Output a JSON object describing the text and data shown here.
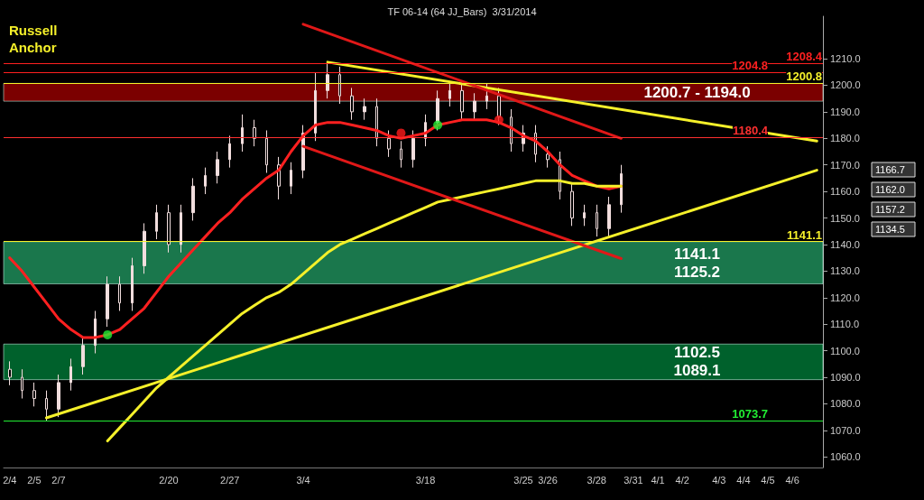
{
  "chart_data": {
    "type": "candlestick",
    "title": "TF 06-14 (64 JJ_Bars)  3/31/2014",
    "color": "#f2dede",
    "annotations": [
      "Russell\nAnchor",
      "1166.7",
      "1162.0",
      "1157.2",
      "1134.5"
    ],
    "categories": [
      "2/4",
      null,
      "2/5",
      null,
      "2/7",
      null,
      null,
      null,
      null,
      null,
      null,
      null,
      null,
      "2/20",
      null,
      null,
      null,
      null,
      "2/27",
      null,
      null,
      null,
      null,
      null,
      "3/4",
      null,
      null,
      null,
      null,
      null,
      null,
      null,
      null,
      null,
      "3/18",
      null,
      null,
      null,
      null,
      null,
      null,
      null,
      "3/25",
      null,
      "3/26",
      null,
      null,
      null,
      "3/28",
      null,
      null,
      "3/31",
      null,
      "4/1",
      null,
      "4/2",
      null,
      null,
      "4/3",
      null,
      "4/4",
      null,
      "4/5",
      null,
      "4/6",
      null,
      null
    ],
    "ohlc": [
      [
        1093,
        1096,
        1087,
        1090
      ],
      [
        1090,
        1093,
        1082,
        1085
      ],
      [
        1085,
        1088,
        1079,
        1082
      ],
      [
        1082,
        1085,
        1073.7,
        1078
      ],
      [
        1078,
        1091,
        1075,
        1088
      ],
      [
        1088,
        1097,
        1085,
        1094
      ],
      [
        1094,
        1105,
        1091,
        1102
      ],
      [
        1102,
        1115,
        1099,
        1112
      ],
      [
        1112,
        1128,
        1109,
        1125
      ],
      [
        1125,
        1128,
        1115,
        1118
      ],
      [
        1118,
        1135,
        1115,
        1132
      ],
      [
        1132,
        1148,
        1129,
        1145
      ],
      [
        1145,
        1155,
        1142,
        1152
      ],
      [
        1152,
        1155,
        1137,
        1140
      ],
      [
        1140,
        1155,
        1137,
        1152
      ],
      [
        1152,
        1165,
        1149,
        1162
      ],
      [
        1162,
        1169,
        1159,
        1166
      ],
      [
        1166,
        1175,
        1163,
        1172
      ],
      [
        1172,
        1181,
        1169,
        1178
      ],
      [
        1178,
        1189,
        1175,
        1184
      ],
      [
        1184,
        1187,
        1177,
        1180
      ],
      [
        1180,
        1183,
        1167,
        1170
      ],
      [
        1170,
        1173,
        1157,
        1162
      ],
      [
        1162,
        1171,
        1159,
        1168
      ],
      [
        1168,
        1185,
        1165,
        1182
      ],
      [
        1182,
        1204.8,
        1179,
        1198
      ],
      [
        1198,
        1208.4,
        1195,
        1204
      ],
      [
        1204,
        1207,
        1193,
        1196
      ],
      [
        1196,
        1199,
        1187,
        1190
      ],
      [
        1190,
        1195,
        1187,
        1192
      ],
      [
        1192,
        1195,
        1177,
        1180
      ],
      [
        1180,
        1183,
        1173,
        1176
      ],
      [
        1176,
        1179,
        1169,
        1172
      ],
      [
        1172,
        1183,
        1169,
        1180
      ],
      [
        1180,
        1189,
        1177,
        1186
      ],
      [
        1186,
        1198,
        1183,
        1195
      ],
      [
        1195,
        1201,
        1192,
        1198
      ],
      [
        1198,
        1201,
        1187,
        1190
      ],
      [
        1190,
        1197,
        1187,
        1194
      ],
      [
        1194,
        1200.8,
        1191,
        1196
      ],
      [
        1196,
        1199,
        1185,
        1188
      ],
      [
        1188,
        1191,
        1175,
        1178
      ],
      [
        1178,
        1185,
        1175,
        1182
      ],
      [
        1182,
        1185,
        1171,
        1174
      ],
      [
        1174,
        1177,
        1169,
        1172
      ],
      [
        1172,
        1175,
        1157,
        1160
      ],
      [
        1160,
        1163,
        1147,
        1150
      ],
      [
        1150,
        1155,
        1147,
        1152
      ],
      [
        1152,
        1155,
        1143,
        1146
      ],
      [
        1146,
        1158,
        1143,
        1155
      ],
      [
        1155,
        1170,
        1152,
        1166.7
      ],
      null,
      null,
      null,
      null,
      null,
      null,
      null,
      null,
      null,
      null,
      null,
      null,
      null,
      null,
      null,
      null
    ],
    "series": [
      {
        "type": "line",
        "color": "#ff2020",
        "values": [
          1135,
          1130,
          1124,
          1118,
          1112,
          1108,
          1105,
          1105,
          1106,
          1108,
          1112,
          1116,
          1122,
          1128,
          1133,
          1138,
          1143,
          1148,
          1152,
          1157,
          1161,
          1165,
          1168,
          1175,
          1181,
          1185,
          1186,
          1186,
          1185,
          1184,
          1183,
          1181,
          1180,
          1181,
          1182,
          1185,
          1186,
          1187,
          1187,
          1187,
          1186,
          1184,
          1181,
          1179,
          1175,
          1170,
          1166,
          1164,
          1162,
          1161,
          1162,
          null,
          null,
          null,
          null,
          null,
          null,
          null,
          null,
          null,
          null,
          null,
          null,
          null,
          null,
          null,
          null
        ]
      },
      {
        "type": "line",
        "color": "#f5f02a",
        "values": [
          null,
          null,
          null,
          null,
          null,
          null,
          null,
          null,
          1066,
          1071,
          1076,
          1081,
          1086,
          1090,
          1094,
          1098,
          1102,
          1106,
          1110,
          1114,
          1117,
          1120,
          1122,
          1125,
          1129,
          1133,
          1137,
          1140,
          1142,
          1144,
          1146,
          1148,
          1150,
          1152,
          1154,
          1156,
          1157,
          1158,
          1159,
          1160,
          1161,
          1162,
          1163,
          1164,
          1164,
          1164,
          1163,
          1163,
          1162,
          1162,
          1162,
          null,
          null,
          null,
          null,
          null,
          null,
          null,
          null,
          null,
          null,
          null,
          null,
          null,
          null,
          null,
          null
        ]
      },
      {
        "type": "line",
        "color": "#f5f02a",
        "values": [
          null,
          null,
          null,
          null,
          null,
          null,
          null,
          null,
          null,
          null,
          null,
          null,
          null,
          null,
          null,
          null,
          null,
          null,
          null,
          null,
          null,
          null,
          null,
          null,
          null,
          null,
          1208.7,
          null,
          null,
          null,
          null,
          null,
          null,
          null,
          null,
          null,
          null,
          null,
          null,
          null,
          null,
          null,
          null,
          null,
          null,
          null,
          null,
          null,
          null,
          null,
          null,
          null,
          null,
          null,
          null,
          null,
          null,
          null,
          null,
          null,
          null,
          null,
          null,
          null,
          null,
          null,
          1179
        ]
      },
      {
        "type": "line",
        "color": "#f5f02a",
        "values": [
          null,
          null,
          null,
          1074.7,
          null,
          null,
          null,
          null,
          null,
          null,
          null,
          null,
          null,
          null,
          null,
          null,
          null,
          null,
          null,
          null,
          null,
          null,
          null,
          null,
          null,
          null,
          null,
          null,
          null,
          null,
          null,
          null,
          null,
          null,
          null,
          null,
          null,
          null,
          null,
          null,
          null,
          null,
          null,
          null,
          null,
          null,
          null,
          null,
          null,
          null,
          null,
          null,
          null,
          null,
          null,
          null,
          null,
          null,
          null,
          null,
          null,
          null,
          null,
          null,
          null,
          null,
          1168
        ]
      },
      {
        "type": "line",
        "color": "#e01818",
        "values": [
          null,
          null,
          null,
          null,
          null,
          null,
          null,
          null,
          null,
          null,
          null,
          null,
          null,
          null,
          null,
          null,
          null,
          null,
          null,
          null,
          null,
          null,
          null,
          null,
          1223,
          null,
          null,
          null,
          null,
          null,
          null,
          null,
          null,
          null,
          null,
          null,
          null,
          null,
          null,
          null,
          null,
          null,
          null,
          null,
          null,
          null,
          null,
          null,
          null,
          null,
          1180,
          null,
          null,
          null,
          null,
          null,
          null,
          null,
          null,
          null,
          null,
          null,
          null,
          null,
          null,
          null,
          null
        ]
      },
      {
        "type": "line",
        "color": "#e01818",
        "values": [
          null,
          null,
          null,
          null,
          null,
          null,
          null,
          null,
          null,
          null,
          null,
          null,
          null,
          null,
          null,
          null,
          null,
          null,
          null,
          null,
          null,
          null,
          null,
          null,
          1177,
          null,
          null,
          null,
          null,
          null,
          null,
          null,
          null,
          null,
          null,
          null,
          null,
          null,
          null,
          null,
          null,
          null,
          null,
          null,
          null,
          null,
          null,
          null,
          null,
          null,
          1134.7,
          null,
          null,
          null,
          null,
          null,
          null,
          null,
          null,
          null,
          null,
          null,
          null,
          null,
          null,
          null,
          null
        ]
      },
      {
        "type": "scatter",
        "color": "#ff1a1a",
        "values": [
          null,
          null,
          null,
          null,
          null,
          null,
          null,
          null,
          null,
          null,
          null,
          null,
          null,
          null,
          null,
          null,
          null,
          null,
          null,
          null,
          null,
          null,
          null,
          null,
          null,
          null,
          null,
          null,
          null,
          null,
          null,
          null,
          1182,
          null,
          null,
          null,
          null,
          null,
          null,
          null,
          1187,
          null,
          null,
          null,
          null,
          null,
          null,
          null,
          null,
          null,
          null,
          null,
          null,
          null,
          null,
          null,
          null,
          null,
          null,
          null,
          null,
          null,
          null,
          null,
          null,
          null,
          null
        ]
      },
      {
        "type": "scatter",
        "color": "#22ee33",
        "values": [
          null,
          null,
          null,
          null,
          null,
          null,
          null,
          null,
          1106,
          null,
          null,
          null,
          null,
          null,
          null,
          null,
          null,
          null,
          null,
          null,
          null,
          null,
          null,
          null,
          null,
          null,
          null,
          null,
          null,
          null,
          null,
          null,
          null,
          null,
          null,
          1185,
          null,
          null,
          null,
          null,
          null,
          null,
          null,
          null,
          null,
          null,
          null,
          null,
          null,
          null,
          null,
          null,
          null,
          null,
          null,
          null,
          null,
          null,
          null,
          null,
          null,
          null,
          null,
          null,
          null,
          null,
          null
        ]
      }
    ],
    "ylim": [
      1056,
      1226
    ],
    "yticks": [
      {
        "value": 1060,
        "label": "1060.0"
      },
      {
        "value": 1070,
        "label": "1070.0"
      },
      {
        "value": 1080,
        "label": "1080.0"
      },
      {
        "value": 1090,
        "label": "1090.0"
      },
      {
        "value": 1100,
        "label": "1100.0"
      },
      {
        "value": 1110,
        "label": "1110.0"
      },
      {
        "value": 1120,
        "label": "1120.0"
      },
      {
        "value": 1130,
        "label": "1130.0"
      },
      {
        "value": 1140,
        "label": "1140.0"
      },
      {
        "value": 1150,
        "label": "1150.0"
      },
      {
        "value": 1160,
        "label": "1160.0"
      },
      {
        "value": 1170,
        "label": "1170.0"
      },
      {
        "value": 1180,
        "label": "1180.0"
      },
      {
        "value": 1190,
        "label": "1190.0"
      },
      {
        "value": 1200,
        "label": "1200.0"
      },
      {
        "value": 1210,
        "label": "1210.0"
      }
    ],
    "ref_lines": [
      {
        "axis": "y",
        "value": 1208.4,
        "label": "1208.4",
        "color": "#ff2020"
      },
      {
        "axis": "y",
        "value": 1204.8,
        "label": "1204.8",
        "color": "#ff2020"
      },
      {
        "axis": "y",
        "value": 1200.8,
        "label": "1200.8",
        "color": "#f5f02a"
      },
      {
        "axis": "y",
        "value": 1180.4,
        "label": "1180.4",
        "color": "#ff3030"
      },
      {
        "axis": "y",
        "value": 1141.1,
        "label": "1141.1",
        "color": "#f5f02a"
      },
      {
        "axis": "y",
        "value": 1073.7,
        "label": "1073.7",
        "color": "#22ee33"
      }
    ],
    "bands": [
      {
        "axis": "y",
        "from": 1194.0,
        "to": 1200.7,
        "label": "1200.7 - 1194.0",
        "color": "#e00000"
      },
      {
        "axis": "y",
        "from": 1125.2,
        "to": 1141.1,
        "label": "1141.1\n1125.2",
        "color": "#2fd98a"
      },
      {
        "axis": "y",
        "from": 1089.1,
        "to": 1102.5,
        "label": "1102.5\n1089.1",
        "color": "#00b050"
      }
    ],
    "grid": false
  }
}
